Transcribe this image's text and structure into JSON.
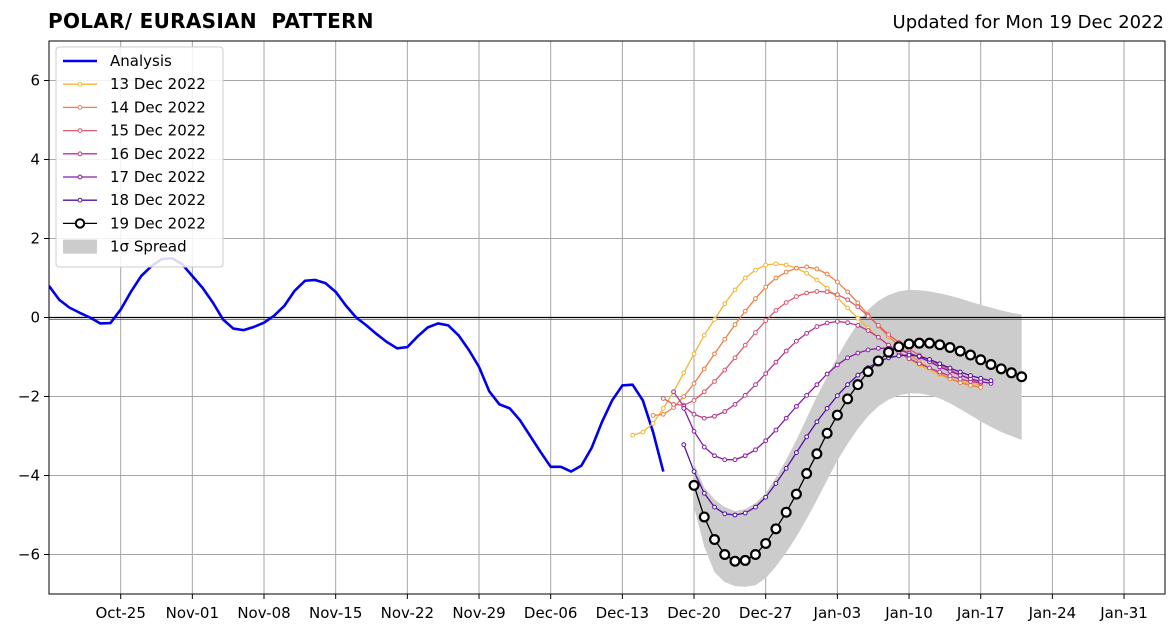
{
  "title": "POLAR/ EURASIAN  PATTERN",
  "updated": "Updated for Mon 19 Dec 2022",
  "chart_data": {
    "type": "line",
    "x_unit": "date",
    "xlim": [
      "2022-10-18",
      "2023-02-04"
    ],
    "ylim": [
      -7,
      7
    ],
    "x_ticks": [
      {
        "date": "2022-10-25",
        "label": "Oct-25"
      },
      {
        "date": "2022-11-01",
        "label": "Nov-01"
      },
      {
        "date": "2022-11-08",
        "label": "Nov-08"
      },
      {
        "date": "2022-11-15",
        "label": "Nov-15"
      },
      {
        "date": "2022-11-22",
        "label": "Nov-22"
      },
      {
        "date": "2022-11-29",
        "label": "Nov-29"
      },
      {
        "date": "2022-12-06",
        "label": "Dec-06"
      },
      {
        "date": "2022-12-13",
        "label": "Dec-13"
      },
      {
        "date": "2022-12-20",
        "label": "Dec-20"
      },
      {
        "date": "2022-12-27",
        "label": "Dec-27"
      },
      {
        "date": "2023-01-03",
        "label": "Jan-03"
      },
      {
        "date": "2023-01-10",
        "label": "Jan-10"
      },
      {
        "date": "2023-01-17",
        "label": "Jan-17"
      },
      {
        "date": "2023-01-24",
        "label": "Jan-24"
      },
      {
        "date": "2023-01-31",
        "label": "Jan-31"
      }
    ],
    "y_ticks": [
      {
        "value": 6,
        "label": "6"
      },
      {
        "value": 4,
        "label": "4"
      },
      {
        "value": 2,
        "label": "2"
      },
      {
        "value": 0,
        "label": "0"
      },
      {
        "value": -2,
        "label": "−2"
      },
      {
        "value": -4,
        "label": "−4"
      },
      {
        "value": -6,
        "label": "−6"
      }
    ],
    "grid": true,
    "zero_line": true,
    "legend_position": "top-left",
    "legend": [
      {
        "label": "Analysis",
        "color": "#0000ee",
        "kind": "line"
      },
      {
        "label": "13 Dec 2022",
        "color": "#f5b536",
        "kind": "marker-line"
      },
      {
        "label": "14 Dec 2022",
        "color": "#ee8040",
        "kind": "marker-line"
      },
      {
        "label": "15 Dec 2022",
        "color": "#dd5a6e",
        "kind": "marker-line"
      },
      {
        "label": "16 Dec 2022",
        "color": "#b5388c",
        "kind": "marker-line"
      },
      {
        "label": "17 Dec 2022",
        "color": "#8a1aa8",
        "kind": "marker-line"
      },
      {
        "label": "18 Dec 2022",
        "color": "#5510a0",
        "kind": "marker-line"
      },
      {
        "label": "19 Dec 2022",
        "color": "#000000",
        "kind": "big-marker-line"
      },
      {
        "label": "1σ Spread",
        "color": "#cccccc",
        "kind": "patch"
      }
    ],
    "analysis": {
      "name": "Analysis",
      "color": "#0000ee",
      "x_start": "2022-10-18",
      "values": [
        0.8,
        0.45,
        0.25,
        0.12,
        0.0,
        -0.15,
        -0.14,
        0.2,
        0.65,
        1.05,
        1.3,
        1.48,
        1.5,
        1.35,
        1.05,
        0.75,
        0.38,
        -0.05,
        -0.28,
        -0.32,
        -0.24,
        -0.13,
        0.05,
        0.3,
        0.68,
        0.93,
        0.95,
        0.87,
        0.65,
        0.3,
        0.0,
        -0.2,
        -0.42,
        -0.62,
        -0.78,
        -0.75,
        -0.48,
        -0.25,
        -0.15,
        -0.2,
        -0.45,
        -0.82,
        -1.25,
        -1.87,
        -2.2,
        -2.3,
        -2.6,
        -3.0,
        -3.4,
        -3.78,
        -3.78,
        -3.9,
        -3.75,
        -3.3,
        -2.65,
        -2.1,
        -1.72,
        -1.7,
        -2.1,
        -2.9,
        -3.9
      ]
    },
    "forecasts": [
      {
        "name": "13 Dec 2022",
        "color": "#f5b536",
        "x_start": "2022-12-14",
        "values": [
          -2.98,
          -2.9,
          -2.68,
          -2.3,
          -1.88,
          -1.4,
          -0.92,
          -0.45,
          -0.05,
          0.35,
          0.7,
          1.0,
          1.2,
          1.33,
          1.36,
          1.33,
          1.25,
          1.12,
          0.95,
          0.74,
          0.5,
          0.24,
          -0.02,
          -0.27,
          -0.5,
          -0.7,
          -0.88,
          -1.05,
          -1.2,
          -1.33,
          -1.45,
          -1.55,
          -1.62,
          -1.67,
          -1.7
        ]
      },
      {
        "name": "14 Dec 2022",
        "color": "#ee8040",
        "x_start": "2022-12-16",
        "values": [
          -2.48,
          -2.45,
          -2.28,
          -2.0,
          -1.67,
          -1.3,
          -0.92,
          -0.55,
          -0.18,
          0.16,
          0.48,
          0.77,
          1.0,
          1.15,
          1.25,
          1.28,
          1.23,
          1.1,
          0.9,
          0.65,
          0.37,
          0.07,
          -0.22,
          -0.48,
          -0.72,
          -0.93,
          -1.12,
          -1.28,
          -1.42,
          -1.55,
          -1.65,
          -1.72,
          -1.77
        ]
      },
      {
        "name": "15 Dec 2022",
        "color": "#dd5a6e",
        "x_start": "2022-12-17",
        "values": [
          -2.05,
          -2.2,
          -2.22,
          -2.1,
          -1.88,
          -1.62,
          -1.33,
          -1.02,
          -0.7,
          -0.38,
          -0.08,
          0.18,
          0.38,
          0.53,
          0.62,
          0.66,
          0.65,
          0.58,
          0.45,
          0.27,
          0.04,
          -0.2,
          -0.43,
          -0.63,
          -0.8,
          -0.95,
          -1.08,
          -1.2,
          -1.32,
          -1.45,
          -1.57,
          -1.67
        ]
      },
      {
        "name": "16 Dec 2022",
        "color": "#b5388c",
        "x_start": "2022-12-18",
        "values": [
          -1.88,
          -2.25,
          -2.45,
          -2.55,
          -2.5,
          -2.38,
          -2.2,
          -1.97,
          -1.7,
          -1.42,
          -1.13,
          -0.85,
          -0.6,
          -0.4,
          -0.23,
          -0.14,
          -0.1,
          -0.13,
          -0.2,
          -0.33,
          -0.5,
          -0.7,
          -0.88,
          -1.04,
          -1.17,
          -1.28,
          -1.38,
          -1.48,
          -1.56,
          -1.62,
          -1.66
        ]
      },
      {
        "name": "17 Dec 2022",
        "color": "#8a1aa8",
        "x_start": "2022-12-19",
        "values": [
          -2.3,
          -2.88,
          -3.28,
          -3.5,
          -3.6,
          -3.6,
          -3.5,
          -3.35,
          -3.12,
          -2.85,
          -2.55,
          -2.25,
          -1.97,
          -1.7,
          -1.43,
          -1.2,
          -1.02,
          -0.9,
          -0.82,
          -0.78,
          -0.78,
          -0.82,
          -0.9,
          -1.0,
          -1.12,
          -1.25,
          -1.36,
          -1.46,
          -1.55,
          -1.62,
          -1.67
        ]
      },
      {
        "name": "18 Dec 2022",
        "color": "#5510a0",
        "x_start": "2022-12-19",
        "values": [
          -3.22,
          -3.9,
          -4.45,
          -4.8,
          -4.97,
          -5.0,
          -4.95,
          -4.8,
          -4.55,
          -4.2,
          -3.82,
          -3.42,
          -3.02,
          -2.64,
          -2.3,
          -1.98,
          -1.7,
          -1.46,
          -1.27,
          -1.12,
          -1.02,
          -0.97,
          -0.95,
          -0.98,
          -1.06,
          -1.17,
          -1.28,
          -1.38,
          -1.47,
          -1.54,
          -1.6
        ]
      }
    ],
    "current": {
      "name": "19 Dec 2022",
      "color": "#000000",
      "x_start": "2022-12-20",
      "values": [
        -4.25,
        -5.05,
        -5.62,
        -6.0,
        -6.17,
        -6.15,
        -6.0,
        -5.72,
        -5.35,
        -4.93,
        -4.47,
        -3.95,
        -3.45,
        -2.93,
        -2.47,
        -2.06,
        -1.7,
        -1.37,
        -1.1,
        -0.88,
        -0.74,
        -0.67,
        -0.65,
        -0.65,
        -0.69,
        -0.76,
        -0.85,
        -0.95,
        -1.07,
        -1.19,
        -1.3,
        -1.4,
        -1.5
      ]
    },
    "spread": {
      "label": "1σ Spread",
      "color": "#cccccc",
      "x_start": "2022-12-20",
      "upper": [
        -3.7,
        -4.3,
        -4.6,
        -4.8,
        -4.9,
        -4.85,
        -4.7,
        -4.45,
        -4.05,
        -3.6,
        -3.1,
        -2.55,
        -2.0,
        -1.5,
        -1.0,
        -0.55,
        -0.15,
        0.2,
        0.42,
        0.57,
        0.66,
        0.7,
        0.69,
        0.66,
        0.61,
        0.55,
        0.48,
        0.4,
        0.32,
        0.25,
        0.18,
        0.12,
        0.08
      ],
      "lower": [
        -4.8,
        -5.8,
        -6.45,
        -6.7,
        -6.8,
        -6.82,
        -6.78,
        -6.6,
        -6.3,
        -5.95,
        -5.55,
        -5.1,
        -4.62,
        -4.12,
        -3.62,
        -3.2,
        -2.82,
        -2.5,
        -2.25,
        -2.08,
        -1.97,
        -1.92,
        -1.92,
        -1.97,
        -2.05,
        -2.17,
        -2.32,
        -2.47,
        -2.63,
        -2.77,
        -2.9,
        -3.0,
        -3.1
      ]
    }
  }
}
